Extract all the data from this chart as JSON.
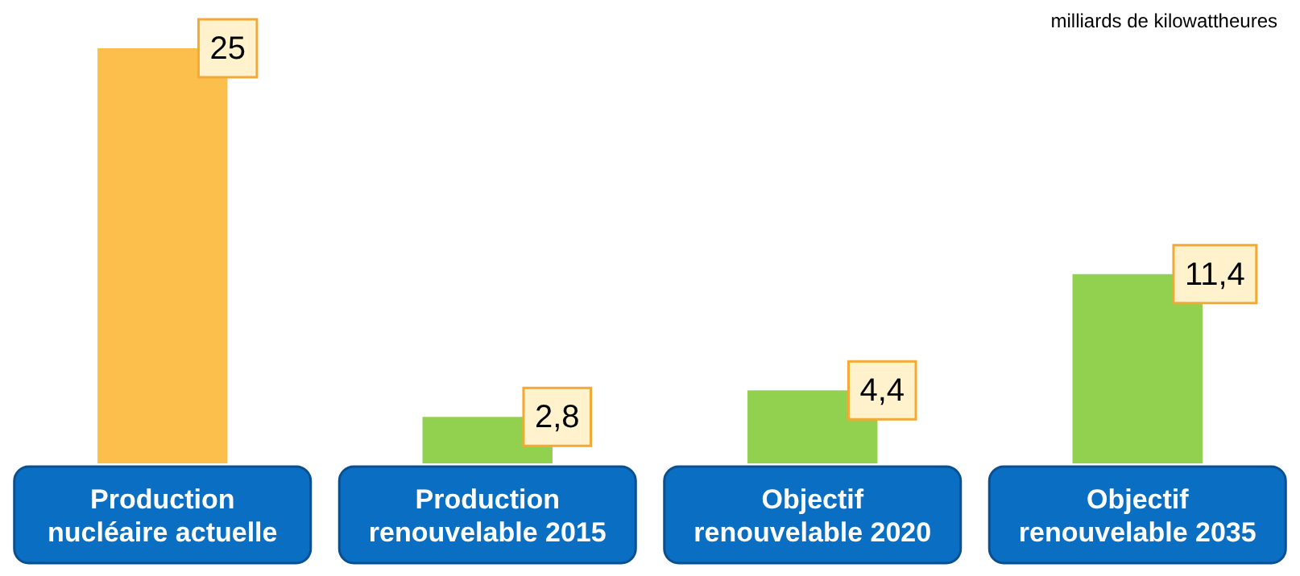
{
  "chart_data": {
    "type": "bar",
    "annotations": [
      "milliards de kilowattheures"
    ],
    "categories": [
      "Production nucléaire actuelle",
      "Production renouvelable 2015",
      "Objectif renouvelable 2020",
      "Objectif renouvelable 2035"
    ],
    "values": [
      25,
      2.8,
      4.4,
      11.4
    ],
    "colors": [
      "#fcbf4c",
      "#92d050",
      "#92d050",
      "#92d050"
    ],
    "value_labels": [
      "25",
      "2,8",
      "4,4",
      "11,4"
    ],
    "grid": false,
    "legend": false
  }
}
